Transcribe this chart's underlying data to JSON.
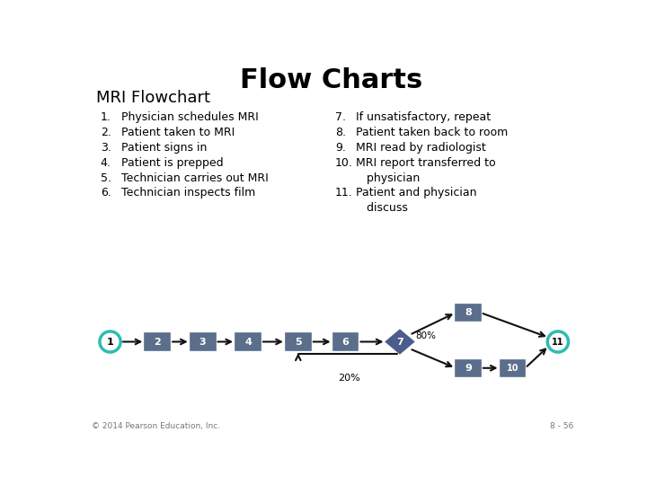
{
  "title": "Flow Charts",
  "subtitle": "MRI Flowchart",
  "title_fontsize": 22,
  "subtitle_fontsize": 13,
  "list_fontsize": 9,
  "background_color": "#ffffff",
  "left_list_nums": [
    "1.",
    "2.",
    "3.",
    "4.",
    "5.",
    "6."
  ],
  "left_list_text": [
    "Physician schedules MRI",
    "Patient taken to MRI",
    "Patient signs in",
    "Patient is prepped",
    "Technician carries out MRI",
    "Technician inspects film"
  ],
  "right_list_nums": [
    "7.",
    "8.",
    "9.",
    "10.",
    "",
    "11.",
    ""
  ],
  "right_list_text": [
    "If unsatisfactory, repeat",
    "Patient taken back to room",
    "MRI read by radiologist",
    "MRI report transferred to",
    "   physician",
    "Patient and physician",
    "   discuss"
  ],
  "box_color": "#5b6e8c",
  "circle_color": "#2dbdb0",
  "diamond_color": "#4a5d8c",
  "arrow_color": "#111111",
  "text_color": "#000000",
  "copyright_text": "© 2014 Pearson Education, Inc.",
  "page_number": "8 - 56",
  "percent_80": "80%",
  "percent_20": "20%"
}
